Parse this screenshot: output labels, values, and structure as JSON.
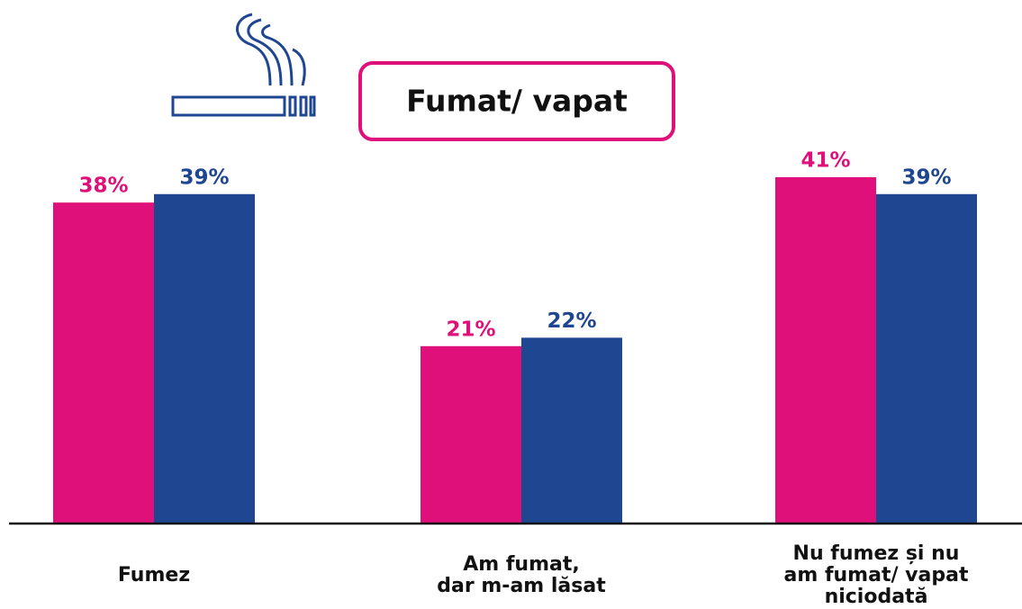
{
  "chart_data": {
    "type": "bar",
    "title": "Fumat/ vapat",
    "categories": [
      [
        "Fumez"
      ],
      [
        "Am fumat,",
        "dar m-am lăsat"
      ],
      [
        "Nu fumez și nu",
        "am fumat/ vapat",
        "niciodată"
      ]
    ],
    "series": [
      {
        "color": "#e0107a",
        "values": [
          38,
          21,
          41
        ],
        "value_labels": [
          "38%",
          "21%",
          "41%"
        ]
      },
      {
        "color": "#1f4690",
        "values": [
          39,
          22,
          39
        ],
        "value_labels": [
          "39%",
          "22%",
          "39%"
        ]
      }
    ],
    "ylim": [
      0,
      41
    ]
  }
}
